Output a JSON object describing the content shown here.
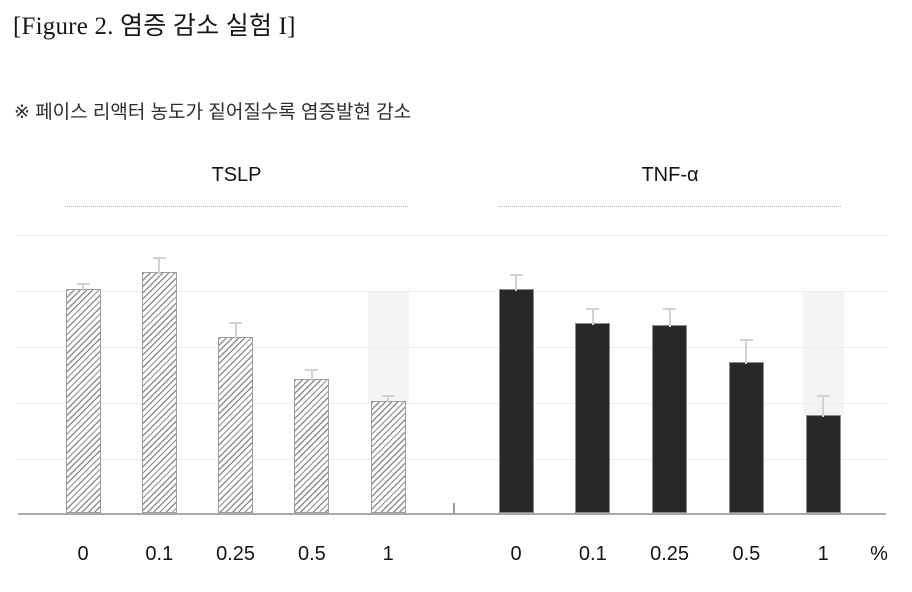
{
  "title": "[Figure 2. 염증 감소 실험 I]",
  "note": "※ 페이스 리액터 농도가 짙어질수록 염증발현 감소",
  "colors": {
    "solid_bar": "#282828",
    "hatch_stripe": "#8f8f8f",
    "error_bar": "#d2d2d2",
    "gridline": "#ededed",
    "axis": "#a9a9a9",
    "highlight_band": "#f4f4f4"
  },
  "chart_data": {
    "type": "bar",
    "title": "[Figure 2. 염증 감소 실험 I]",
    "annotation": "※ 페이스 리액터 농도가 짙어질수록 염증발현 감소",
    "categories": [
      "0",
      "0.1",
      "0.25",
      "0.5",
      "1"
    ],
    "xlabel_unit": "%",
    "ylabel": "",
    "ylim": [
      0,
      100
    ],
    "grid_step": 20,
    "grid": true,
    "legend_position": "none",
    "groups": [
      {
        "name": "TSLP",
        "style": "hatched",
        "values": [
          80,
          86,
          63,
          48,
          40
        ],
        "errors": [
          3,
          6,
          6,
          4,
          3
        ],
        "highlight": {
          "index": 4,
          "from_value": 80
        }
      },
      {
        "name": "TNF-α",
        "style": "solid",
        "values": [
          80,
          68,
          67,
          54,
          35
        ],
        "errors": [
          6,
          6,
          7,
          9,
          8
        ],
        "highlight": {
          "index": 4,
          "from_value": 80
        }
      }
    ]
  }
}
